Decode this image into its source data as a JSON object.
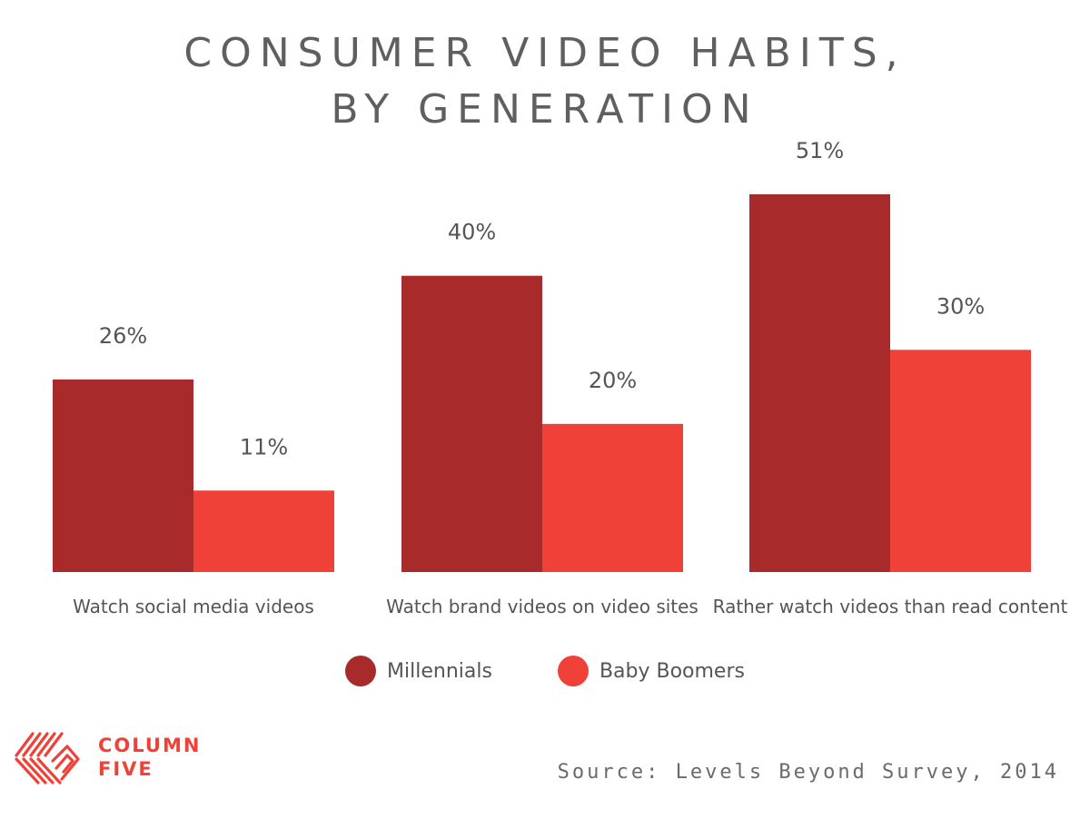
{
  "header": {
    "title_line1": "CONSUMER VIDEO HABITS,",
    "title_line2": "BY GENERATION"
  },
  "chart_data": {
    "type": "bar",
    "title": "CONSUMER VIDEO HABITS, BY GENERATION",
    "categories": [
      "Watch social media videos",
      "Watch brand videos on video sites",
      "Rather watch videos than read content"
    ],
    "series": [
      {
        "name": "Millennials",
        "values": [
          26,
          40,
          51
        ],
        "labels": [
          "26%",
          "40%",
          "51%"
        ],
        "color": "#a82a2a"
      },
      {
        "name": "Baby Boomers",
        "values": [
          11,
          20,
          30
        ],
        "labels": [
          "11%",
          "20%",
          "30%"
        ],
        "color": "#ef4138"
      }
    ],
    "ylim": [
      0,
      51
    ],
    "grid": false,
    "legend_position": "bottom"
  },
  "branding": {
    "logo_line1": "COLUMN",
    "logo_line2": "FIVE",
    "logo_color": "#ef4138"
  },
  "source": "Source: Levels Beyond Survey, 2014"
}
